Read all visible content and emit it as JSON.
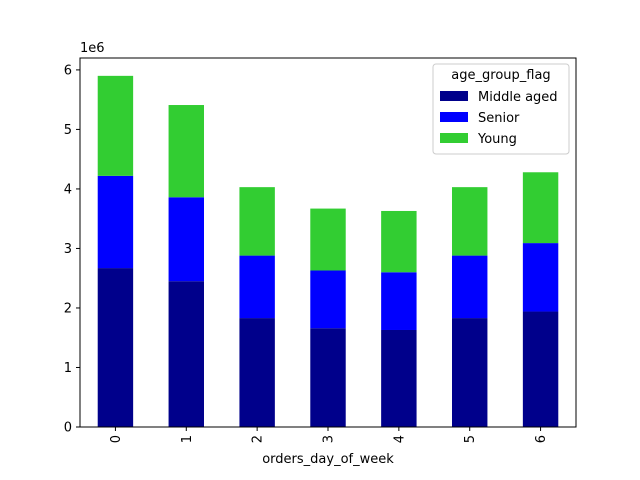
{
  "chart_data": {
    "type": "bar",
    "stacked": true,
    "categories": [
      "0",
      "1",
      "2",
      "3",
      "4",
      "5",
      "6"
    ],
    "xlabel": "orders_day_of_week",
    "ylabel": "",
    "y_scale_label": "1e6",
    "yticks": [
      "0",
      "1",
      "2",
      "3",
      "4",
      "5",
      "6"
    ],
    "ylim": [
      0,
      6.2
    ],
    "legend": {
      "title": "age_group_flag",
      "placement": "top-right"
    },
    "series": [
      {
        "name": "Middle aged",
        "color": "#00008b",
        "values": [
          2.67,
          2.45,
          1.83,
          1.66,
          1.63,
          1.83,
          1.94
        ]
      },
      {
        "name": "Senior",
        "color": "#0000ff",
        "values": [
          1.55,
          1.41,
          1.05,
          0.97,
          0.97,
          1.05,
          1.15
        ]
      },
      {
        "name": "Young",
        "color": "#32cd32",
        "values": [
          1.68,
          1.55,
          1.15,
          1.04,
          1.03,
          1.15,
          1.19
        ]
      }
    ]
  }
}
